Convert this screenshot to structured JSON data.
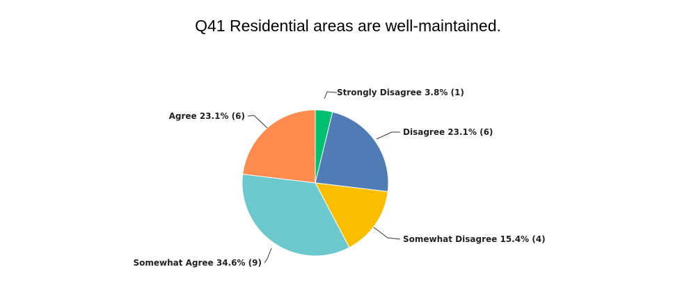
{
  "chart_data": {
    "type": "pie",
    "title": "Q41 Residential areas are well-maintained.",
    "slices": [
      {
        "label": "Strongly Disagree",
        "percent": 3.8,
        "count": 1,
        "display": "Strongly Disagree 3.8% (1)",
        "color": "#00BF6F"
      },
      {
        "label": "Disagree",
        "percent": 23.1,
        "count": 6,
        "display": "Disagree 23.1% (6)",
        "color": "#507CB6"
      },
      {
        "label": "Somewhat Disagree",
        "percent": 15.4,
        "count": 4,
        "display": "Somewhat Disagree 15.4% (4)",
        "color": "#F9BE00"
      },
      {
        "label": "Somewhat Agree",
        "percent": 34.6,
        "count": 9,
        "display": "Somewhat Agree 34.6% (9)",
        "color": "#6BC8CD"
      },
      {
        "label": "Agree",
        "percent": 23.1,
        "count": 6,
        "display": "Agree 23.1% (6)",
        "color": "#FF8B4F"
      }
    ]
  }
}
